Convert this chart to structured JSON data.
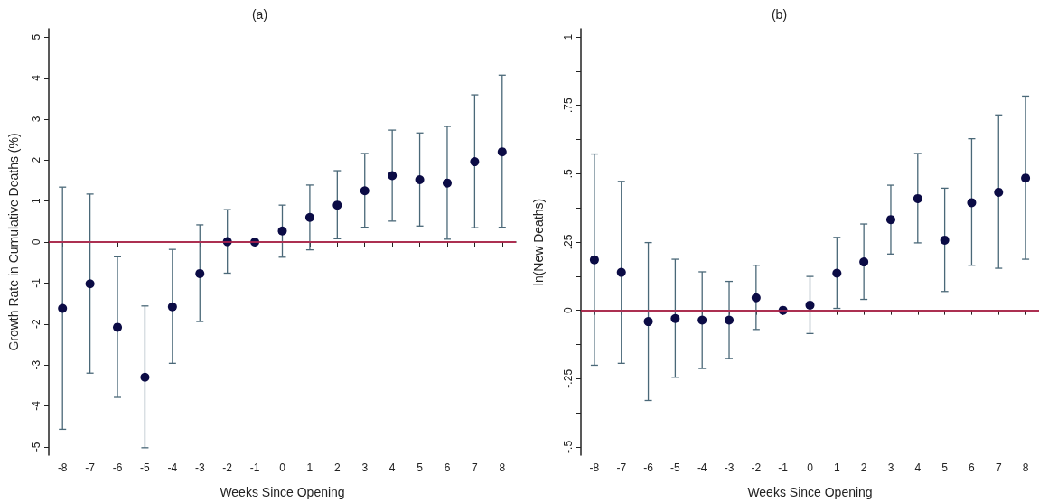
{
  "chart_data": [
    {
      "type": "scatter",
      "title": "(a)",
      "xlabel": "Weeks Since Opening",
      "ylabel": "Growth Rate in Cumulative Deaths (%)",
      "categories": [
        "-8",
        "-7",
        "-6",
        "-5",
        "-4",
        "-3",
        "-2",
        "-1",
        "0",
        "1",
        "2",
        "3",
        "4",
        "5",
        "6",
        "7",
        "8"
      ],
      "series": [
        {
          "color": "#0b0b45",
          "values": [
            -1.62,
            -1.02,
            -2.08,
            -3.3,
            -1.58,
            -0.77,
            0.01,
            0,
            0.27,
            0.6,
            0.9,
            1.25,
            1.62,
            1.52,
            1.44,
            1.96,
            2.2
          ],
          "errors": [
            [
              -4.57,
              1.34
            ],
            [
              -3.2,
              1.17
            ],
            [
              -3.79,
              -0.36
            ],
            [
              -5.02,
              -1.56
            ],
            [
              -2.96,
              -0.18
            ],
            [
              -1.94,
              0.42
            ],
            [
              -0.76,
              0.79
            ],
            null,
            [
              -0.37,
              0.9
            ],
            [
              -0.19,
              1.39
            ],
            [
              0.08,
              1.74
            ],
            [
              0.36,
              2.16
            ],
            [
              0.51,
              2.73
            ],
            [
              0.39,
              2.66
            ],
            [
              0.07,
              2.82
            ],
            [
              0.35,
              3.59
            ],
            [
              0.36,
              4.07
            ]
          ]
        }
      ],
      "ylim": [
        -5.2,
        5.2
      ],
      "yticks": [
        -5,
        -4,
        -3,
        -2,
        -1,
        0,
        1,
        2,
        3,
        4,
        5
      ],
      "ref_lines": [
        {
          "axis": "y",
          "value": 0,
          "color": "#c8234f"
        }
      ],
      "grid": false,
      "marker": "circle"
    },
    {
      "type": "scatter",
      "title": "(b)",
      "xlabel": "Weeks Since Opening",
      "ylabel": "ln(New Deaths)",
      "categories": [
        "-8",
        "-7",
        "-6",
        "-5",
        "-4",
        "-3",
        "-2",
        "-1",
        "0",
        "1",
        "2",
        "3",
        "4",
        "5",
        "6",
        "7",
        "8"
      ],
      "series": [
        {
          "color": "#0b0b45",
          "values": [
            0.185,
            0.139,
            -0.041,
            -0.03,
            -0.036,
            -0.036,
            0.046,
            0,
            0.019,
            0.136,
            0.177,
            0.332,
            0.409,
            0.257,
            0.394,
            0.432,
            0.484
          ],
          "errors": [
            [
              -0.201,
              0.572
            ],
            [
              -0.194,
              0.472
            ],
            [
              -0.33,
              0.248
            ],
            [
              -0.245,
              0.187
            ],
            [
              -0.213,
              0.141
            ],
            [
              -0.176,
              0.106
            ],
            [
              -0.07,
              0.165
            ],
            null,
            [
              -0.085,
              0.124
            ],
            [
              0.007,
              0.267
            ],
            [
              0.04,
              0.316
            ],
            [
              0.206,
              0.458
            ],
            [
              0.247,
              0.574
            ],
            [
              0.069,
              0.447
            ],
            [
              0.165,
              0.628
            ],
            [
              0.154,
              0.715
            ],
            [
              0.187,
              0.784
            ]
          ]
        }
      ],
      "ylim": [
        -0.53,
        1.03
      ],
      "yticks": [
        {
          "value": -0.5,
          "label": "-.5"
        },
        {
          "value": -0.375,
          "label": null
        },
        {
          "value": -0.25,
          "label": "-.25"
        },
        {
          "value": -0.125,
          "label": null
        },
        0,
        {
          "value": 0.125,
          "label": null
        },
        {
          "value": 0.25,
          "label": ".25"
        },
        {
          "value": 0.375,
          "label": null
        },
        {
          "value": 0.5,
          "label": ".5"
        },
        {
          "value": 0.625,
          "label": null
        },
        {
          "value": 0.75,
          "label": ".75"
        },
        {
          "value": 0.875,
          "label": null
        },
        1
      ],
      "ref_lines": [
        {
          "axis": "y",
          "value": 0,
          "color": "#c8234f"
        }
      ],
      "grid": false,
      "marker": "circle"
    }
  ]
}
